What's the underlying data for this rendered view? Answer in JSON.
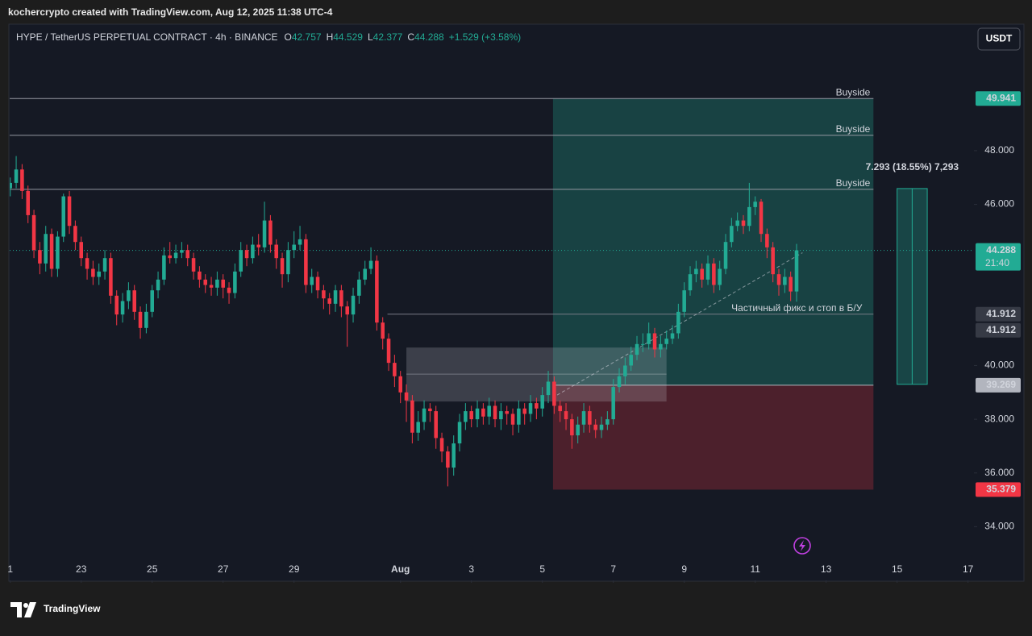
{
  "header": {
    "credit": "kochercrypto created with TradingView.com, Aug 12, 2025 11:38 UTC-4"
  },
  "symbol": {
    "name": "HYPE / TetherUS PERPETUAL CONTRACT · 4h · BINANCE",
    "o": "O",
    "h": "H",
    "l": "L",
    "c": "C",
    "change": "+1.529 (+3.58%)",
    "currency": "USDT",
    "countdown": "21:40"
  },
  "footer": {
    "brand": "TradingView"
  },
  "chart_data": {
    "type": "candlestick",
    "open": [
      46.6,
      46.8,
      47.3,
      46.5,
      45.6,
      44.3,
      43.8,
      44.9,
      43.6,
      44.8,
      46.3,
      45.2,
      44.6,
      44.0,
      43.6,
      43.3,
      43.5,
      44.0,
      42.6,
      41.9,
      42.4,
      42.8,
      42.0,
      41.4,
      42.0,
      42.8,
      43.2,
      44.1,
      44.0,
      44.2,
      44.3,
      44.0,
      43.5,
      43.2,
      43.0,
      42.9,
      43.2,
      42.9,
      42.7,
      43.5,
      44.3,
      44.0,
      44.5,
      44.4,
      45.4,
      44.5,
      44.0,
      43.4,
      44.3,
      44.5,
      44.7,
      43.0,
      43.3,
      42.8,
      42.5,
      42.3,
      42.8,
      42.2,
      41.9,
      42.6,
      43.2,
      43.6,
      43.9,
      41.6,
      41.0,
      40.1,
      39.6,
      39.0,
      38.7,
      37.5,
      37.9,
      38.4,
      38.3,
      37.3,
      36.8,
      36.2,
      37.1,
      37.9,
      38.3,
      38.0,
      38.4,
      38.1,
      38.5,
      38.0,
      38.3,
      38.2,
      37.8,
      38.4,
      38.2,
      38.6,
      38.4,
      38.9,
      39.4,
      38.5,
      38.3,
      38.0,
      37.4,
      37.8,
      38.3,
      37.8,
      37.6,
      37.8,
      38.0,
      39.2,
      39.6,
      40.0,
      40.4,
      40.8,
      40.8,
      41.2,
      40.6,
      40.8,
      41.0,
      41.2,
      42.0,
      42.8,
      43.4,
      43.6,
      43.2,
      43.8,
      43.0,
      43.6,
      44.6,
      45.2,
      45.4,
      45.2,
      45.9,
      46.1,
      44.9,
      44.4,
      43.4,
      43.0,
      43.3,
      42.757
    ],
    "high": [
      47.0,
      47.8,
      47.5,
      46.7,
      45.8,
      44.6,
      45.2,
      45.1,
      45.0,
      46.4,
      46.5,
      45.4,
      44.8,
      44.2,
      43.9,
      43.8,
      44.3,
      44.2,
      42.8,
      42.7,
      43.1,
      43.0,
      42.2,
      42.3,
      43.0,
      43.5,
      44.4,
      44.6,
      44.5,
      44.6,
      44.5,
      44.2,
      43.7,
      43.4,
      43.3,
      43.5,
      43.4,
      43.1,
      43.8,
      44.6,
      44.5,
      44.8,
      44.9,
      46.1,
      45.6,
      44.7,
      44.2,
      44.6,
      45.0,
      45.2,
      44.9,
      43.6,
      43.5,
      43.0,
      42.7,
      43.0,
      43.0,
      42.4,
      42.9,
      43.5,
      43.9,
      44.4,
      44.1,
      41.8,
      41.2,
      40.4,
      39.8,
      39.3,
      38.9,
      38.3,
      38.7,
      38.6,
      38.5,
      37.5,
      37.0,
      37.4,
      38.2,
      38.6,
      38.5,
      38.7,
      38.6,
      38.8,
      38.7,
      38.6,
      38.5,
      38.4,
      38.7,
      38.6,
      38.9,
      38.8,
      39.2,
      39.8,
      39.6,
      38.7,
      38.6,
      38.2,
      38.1,
      38.6,
      38.5,
      38.0,
      38.1,
      38.3,
      39.5,
      39.9,
      40.3,
      40.7,
      41.1,
      41.2,
      41.6,
      41.4,
      41.1,
      41.3,
      41.5,
      42.3,
      43.1,
      43.7,
      43.9,
      43.8,
      44.1,
      44.0,
      43.9,
      44.9,
      45.5,
      45.7,
      45.6,
      46.8,
      46.3,
      46.2,
      45.1,
      44.6,
      43.6,
      43.6,
      43.5,
      44.529
    ],
    "low": [
      46.3,
      46.6,
      46.2,
      45.3,
      44.0,
      43.4,
      43.5,
      43.3,
      43.3,
      44.6,
      44.9,
      44.3,
      43.7,
      43.2,
      43.0,
      43.0,
      43.2,
      42.3,
      41.5,
      41.6,
      42.1,
      41.7,
      41.0,
      41.2,
      41.8,
      42.5,
      43.0,
      43.8,
      43.8,
      44.0,
      43.7,
      43.2,
      42.9,
      42.7,
      42.6,
      42.6,
      42.5,
      42.3,
      42.5,
      43.3,
      43.7,
      43.8,
      44.1,
      44.2,
      44.2,
      43.6,
      42.9,
      43.1,
      44.0,
      44.3,
      42.7,
      42.7,
      42.5,
      42.1,
      41.9,
      42.0,
      41.8,
      40.7,
      41.6,
      42.3,
      43.0,
      43.4,
      41.3,
      40.6,
      39.8,
      39.2,
      38.6,
      37.9,
      37.1,
      37.2,
      37.6,
      37.9,
      36.9,
      36.4,
      35.5,
      35.9,
      36.8,
      37.6,
      37.7,
      37.7,
      37.8,
      37.8,
      37.7,
      37.6,
      37.8,
      37.4,
      37.5,
      37.8,
      37.9,
      38.0,
      38.1,
      38.6,
      38.2,
      37.9,
      37.6,
      36.9,
      37.1,
      37.5,
      37.5,
      37.3,
      37.3,
      37.6,
      37.8,
      39.0,
      39.3,
      39.8,
      40.2,
      40.5,
      40.6,
      40.3,
      40.3,
      40.6,
      40.8,
      41.0,
      41.8,
      42.6,
      43.1,
      42.9,
      43.0,
      42.7,
      42.8,
      43.4,
      44.4,
      45.0,
      44.9,
      45.0,
      45.6,
      44.6,
      44.0,
      43.1,
      42.6,
      42.7,
      42.4,
      42.377
    ],
    "close": [
      46.8,
      47.3,
      46.5,
      45.6,
      44.3,
      43.8,
      44.9,
      43.6,
      44.8,
      46.3,
      45.2,
      44.6,
      44.0,
      43.6,
      43.3,
      43.5,
      44.0,
      42.6,
      41.9,
      42.4,
      42.8,
      42.0,
      41.4,
      42.0,
      42.8,
      43.2,
      44.1,
      44.0,
      44.2,
      44.3,
      44.0,
      43.5,
      43.2,
      43.0,
      42.9,
      43.2,
      42.9,
      42.7,
      43.5,
      44.3,
      44.0,
      44.5,
      44.4,
      45.4,
      44.5,
      44.0,
      43.4,
      44.3,
      44.5,
      44.7,
      43.0,
      43.3,
      42.8,
      42.5,
      42.3,
      42.8,
      42.2,
      41.9,
      42.6,
      43.2,
      43.6,
      43.9,
      41.6,
      41.0,
      40.1,
      39.6,
      39.0,
      38.7,
      37.5,
      37.9,
      38.4,
      38.3,
      37.3,
      36.8,
      36.2,
      37.1,
      37.9,
      38.3,
      38.0,
      38.4,
      38.1,
      38.5,
      38.0,
      38.3,
      38.2,
      37.8,
      38.4,
      38.2,
      38.6,
      38.4,
      38.9,
      39.4,
      38.5,
      38.3,
      38.0,
      37.4,
      37.8,
      38.3,
      37.8,
      37.6,
      37.8,
      38.0,
      39.2,
      39.6,
      40.0,
      40.4,
      40.8,
      40.8,
      41.2,
      40.6,
      40.8,
      41.0,
      41.2,
      42.0,
      42.8,
      43.4,
      43.6,
      43.2,
      43.8,
      43.0,
      43.6,
      44.6,
      45.2,
      45.4,
      45.2,
      45.9,
      46.1,
      44.9,
      44.4,
      43.4,
      43.0,
      43.3,
      42.757,
      44.288
    ],
    "up_color": "#22ab94",
    "down_color": "#f23645",
    "xlim": [
      -0.1,
      163
    ],
    "ylim": [
      32.0,
      52.68
    ],
    "xticks": [
      {
        "value": 0,
        "label": "1"
      },
      {
        "value": 12,
        "label": "23"
      },
      {
        "value": 24,
        "label": "25"
      },
      {
        "value": 36,
        "label": "27"
      },
      {
        "value": 48,
        "label": "29"
      },
      {
        "value": 66,
        "label": "Aug"
      },
      {
        "value": 78,
        "label": "3"
      },
      {
        "value": 90,
        "label": "5"
      },
      {
        "value": 102,
        "label": "7"
      },
      {
        "value": 114,
        "label": "9"
      },
      {
        "value": 126,
        "label": "11"
      },
      {
        "value": 138,
        "label": "13"
      },
      {
        "value": 150,
        "label": "15"
      },
      {
        "value": 162,
        "label": "17"
      }
    ],
    "yticks": [
      {
        "value": 34,
        "label": "34.000"
      },
      {
        "value": 36,
        "label": "36.000"
      },
      {
        "value": 38,
        "label": "38.000"
      },
      {
        "value": 40,
        "label": "40.000"
      },
      {
        "value": 46,
        "label": "46.000"
      },
      {
        "value": 48,
        "label": "48.000"
      }
    ],
    "target": 49.941,
    "entry": 39.269,
    "stop": 35.379,
    "breakeven": 41.912,
    "position": {
      "start": 91.8,
      "end": 146
    },
    "buyside": [
      {
        "label": "Buyside",
        "value": 49.941
      },
      {
        "label": "Buyside",
        "value": 48.57
      },
      {
        "label": "Buyside",
        "value": 46.56
      }
    ],
    "breakeven_note": "Частичный фикс и стоп в Б/У",
    "breakeven_start": 63.8,
    "zone": {
      "start": 67,
      "end": 111,
      "top": 40.67,
      "bottom": 38.66,
      "mid": 39.68
    },
    "trend_line": {
      "x": [
        92.5,
        134
      ],
      "y": [
        38.9,
        44.2
      ]
    },
    "measure": {
      "label": "7.293 (18.55%) 7,293",
      "start": 150,
      "end": 155.1,
      "top": 46.59,
      "bottom": 39.3
    }
  }
}
